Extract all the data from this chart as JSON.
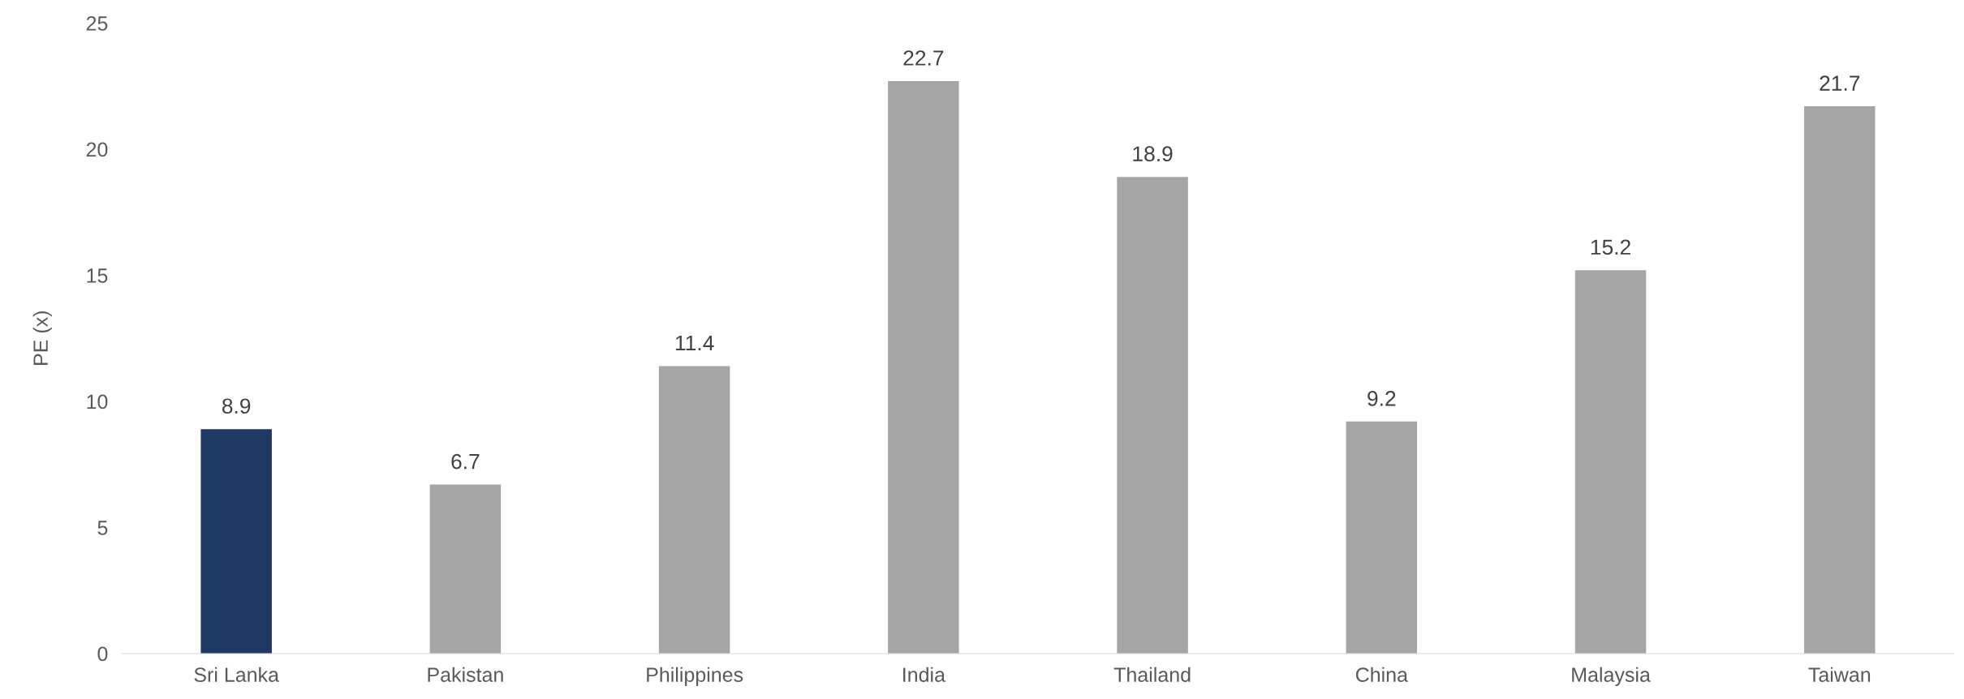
{
  "chart_data": {
    "type": "bar",
    "ylabel": "PE (x)",
    "categories": [
      "Sri Lanka",
      "Pakistan",
      "Philippines",
      "India",
      "Thailand",
      "China",
      "Malaysia",
      "Taiwan"
    ],
    "values": [
      8.9,
      6.7,
      11.4,
      22.7,
      18.9,
      9.2,
      15.2,
      21.7
    ],
    "colors": [
      "#203864",
      "#a5a5a5",
      "#a5a5a5",
      "#a5a5a5",
      "#a5a5a5",
      "#a5a5a5",
      "#a5a5a5",
      "#a5a5a5"
    ],
    "ylim": [
      0,
      25
    ],
    "yticks": [
      0,
      5,
      10,
      15,
      20,
      25
    ],
    "grid": false,
    "data_labels": true
  }
}
